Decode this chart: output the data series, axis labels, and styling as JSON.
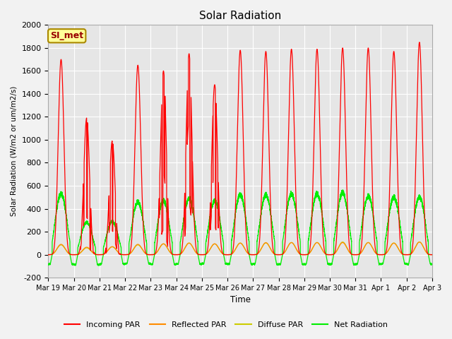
{
  "title": "Solar Radiation",
  "ylabel": "Solar Radiation (W/m2 or um/m2/s)",
  "xlabel": "Time",
  "ylim": [
    -200,
    2000
  ],
  "yticks": [
    -200,
    0,
    200,
    400,
    600,
    800,
    1000,
    1200,
    1400,
    1600,
    1800,
    2000
  ],
  "xtick_labels": [
    "Mar 19",
    "Mar 20",
    "Mar 21",
    "Mar 22",
    "Mar 23",
    "Mar 24",
    "Mar 25",
    "Mar 26",
    "Mar 27",
    "Mar 28",
    "Mar 29",
    "Mar 30",
    "Mar 31",
    "Apr 1",
    "Apr 2",
    "Apr 3"
  ],
  "colors": {
    "incoming": "#FF0000",
    "reflected": "#FF8C00",
    "diffuse": "#CCCC00",
    "net": "#00EE00"
  },
  "legend_labels": [
    "Incoming PAR",
    "Reflected PAR",
    "Diffuse PAR",
    "Net Radiation"
  ],
  "label_box": "SI_met",
  "background_color": "#E8E8E8",
  "grid_color": "#FFFFFF",
  "n_days": 15,
  "points_per_day": 288,
  "incoming_peaks": [
    1700,
    1190,
    990,
    1650,
    1600,
    1750,
    1480,
    1780,
    1770,
    1790,
    1790,
    1800,
    1800,
    1770,
    1850
  ],
  "net_peaks": [
    530,
    280,
    290,
    460,
    470,
    490,
    470,
    520,
    520,
    530,
    530,
    540,
    510,
    500,
    500
  ],
  "reflected_peaks": [
    90,
    65,
    70,
    90,
    95,
    100,
    95,
    100,
    105,
    105,
    105,
    105,
    105,
    100,
    110
  ],
  "diffuse_peaks": [
    100,
    70,
    80,
    100,
    110,
    120,
    110,
    120,
    120,
    125,
    125,
    130,
    125,
    120,
    130
  ],
  "night_neg": [
    -80,
    -85,
    -80,
    -75,
    -80,
    -80,
    -75,
    -80,
    -80,
    -80,
    -80,
    -80,
    -80,
    -75,
    -80
  ]
}
